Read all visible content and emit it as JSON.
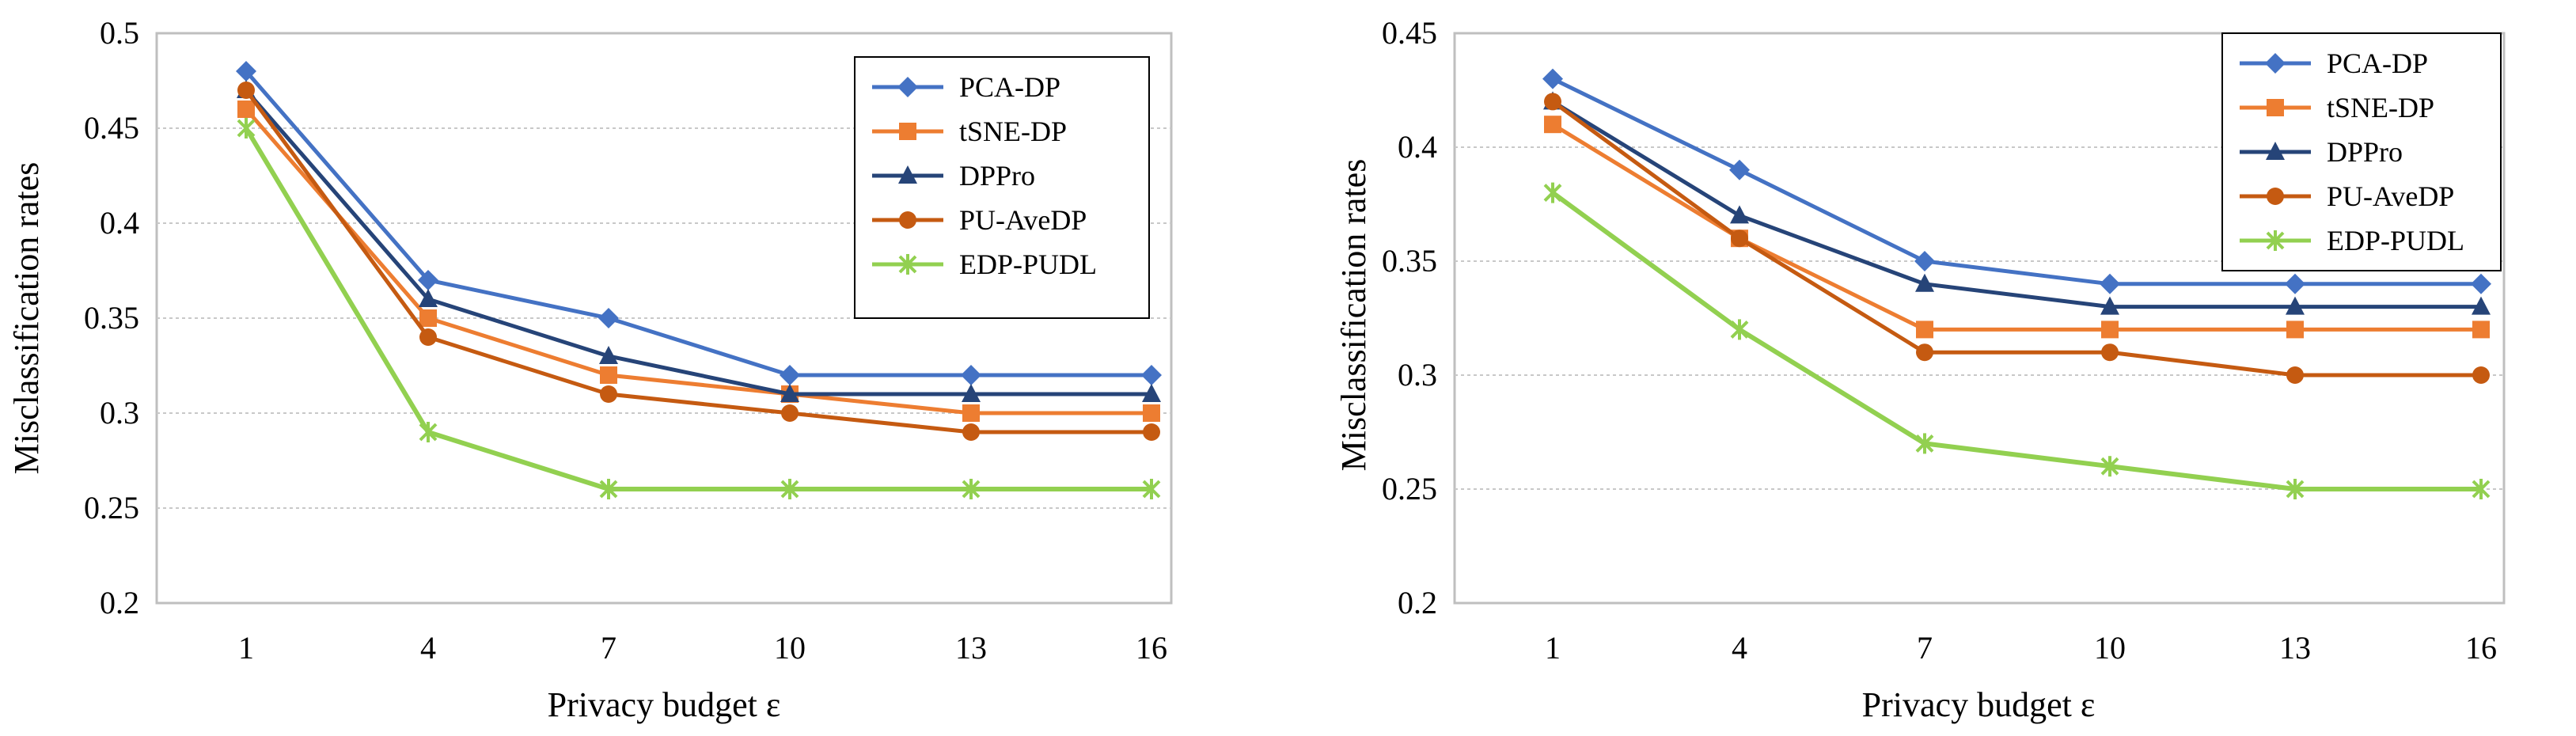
{
  "chart_data": [
    {
      "type": "line",
      "title": "",
      "xlabel": "Privacy budget ε",
      "ylabel": "Misclassification rates",
      "categories": [
        "1",
        "4",
        "7",
        "10",
        "13",
        "16"
      ],
      "ylim": [
        0.2,
        0.5
      ],
      "yticks": [
        "0.2",
        "0.25",
        "0.3",
        "0.35",
        "0.4",
        "0.45",
        "0.5"
      ],
      "ytick_values": [
        0.2,
        0.25,
        0.3,
        0.35,
        0.4,
        0.45,
        0.5
      ],
      "grid": true,
      "legend_position": "top-right",
      "series": [
        {
          "name": "PCA-DP",
          "color": "#4472C4",
          "marker": "diamond",
          "values": [
            0.48,
            0.37,
            0.35,
            0.32,
            0.32,
            0.32
          ]
        },
        {
          "name": "tSNE-DP",
          "color": "#ED7D31",
          "marker": "square",
          "values": [
            0.46,
            0.35,
            0.32,
            0.31,
            0.3,
            0.3
          ]
        },
        {
          "name": "DPPro",
          "color": "#264478",
          "marker": "triangle",
          "values": [
            0.47,
            0.36,
            0.33,
            0.31,
            0.31,
            0.31
          ]
        },
        {
          "name": "PU-AveDP",
          "color": "#C55A11",
          "marker": "circle",
          "values": [
            0.47,
            0.34,
            0.31,
            0.3,
            0.29,
            0.29
          ]
        },
        {
          "name": "EDP-PUDL",
          "color": "#92D050",
          "marker": "star",
          "values": [
            0.45,
            0.29,
            0.26,
            0.26,
            0.26,
            0.26
          ]
        }
      ]
    },
    {
      "type": "line",
      "title": "",
      "xlabel": "Privacy budget ε",
      "ylabel": "Misclassification rates",
      "categories": [
        "1",
        "4",
        "7",
        "10",
        "13",
        "16"
      ],
      "ylim": [
        0.2,
        0.45
      ],
      "yticks": [
        "0.2",
        "0.25",
        "0.3",
        "0.35",
        "0.4",
        "0.45"
      ],
      "ytick_values": [
        0.2,
        0.25,
        0.3,
        0.35,
        0.4,
        0.45
      ],
      "grid": true,
      "legend_position": "top-right",
      "series": [
        {
          "name": "PCA-DP",
          "color": "#4472C4",
          "marker": "diamond",
          "values": [
            0.43,
            0.39,
            0.35,
            0.34,
            0.34,
            0.34
          ]
        },
        {
          "name": "tSNE-DP",
          "color": "#ED7D31",
          "marker": "square",
          "values": [
            0.41,
            0.36,
            0.32,
            0.32,
            0.32,
            0.32
          ]
        },
        {
          "name": "DPPro",
          "color": "#264478",
          "marker": "triangle",
          "values": [
            0.42,
            0.37,
            0.34,
            0.33,
            0.33,
            0.33
          ]
        },
        {
          "name": "PU-AveDP",
          "color": "#C55A11",
          "marker": "circle",
          "values": [
            0.42,
            0.36,
            0.31,
            0.31,
            0.3,
            0.3
          ]
        },
        {
          "name": "EDP-PUDL",
          "color": "#92D050",
          "marker": "star",
          "values": [
            0.38,
            0.32,
            0.27,
            0.26,
            0.25,
            0.25
          ]
        }
      ]
    }
  ]
}
